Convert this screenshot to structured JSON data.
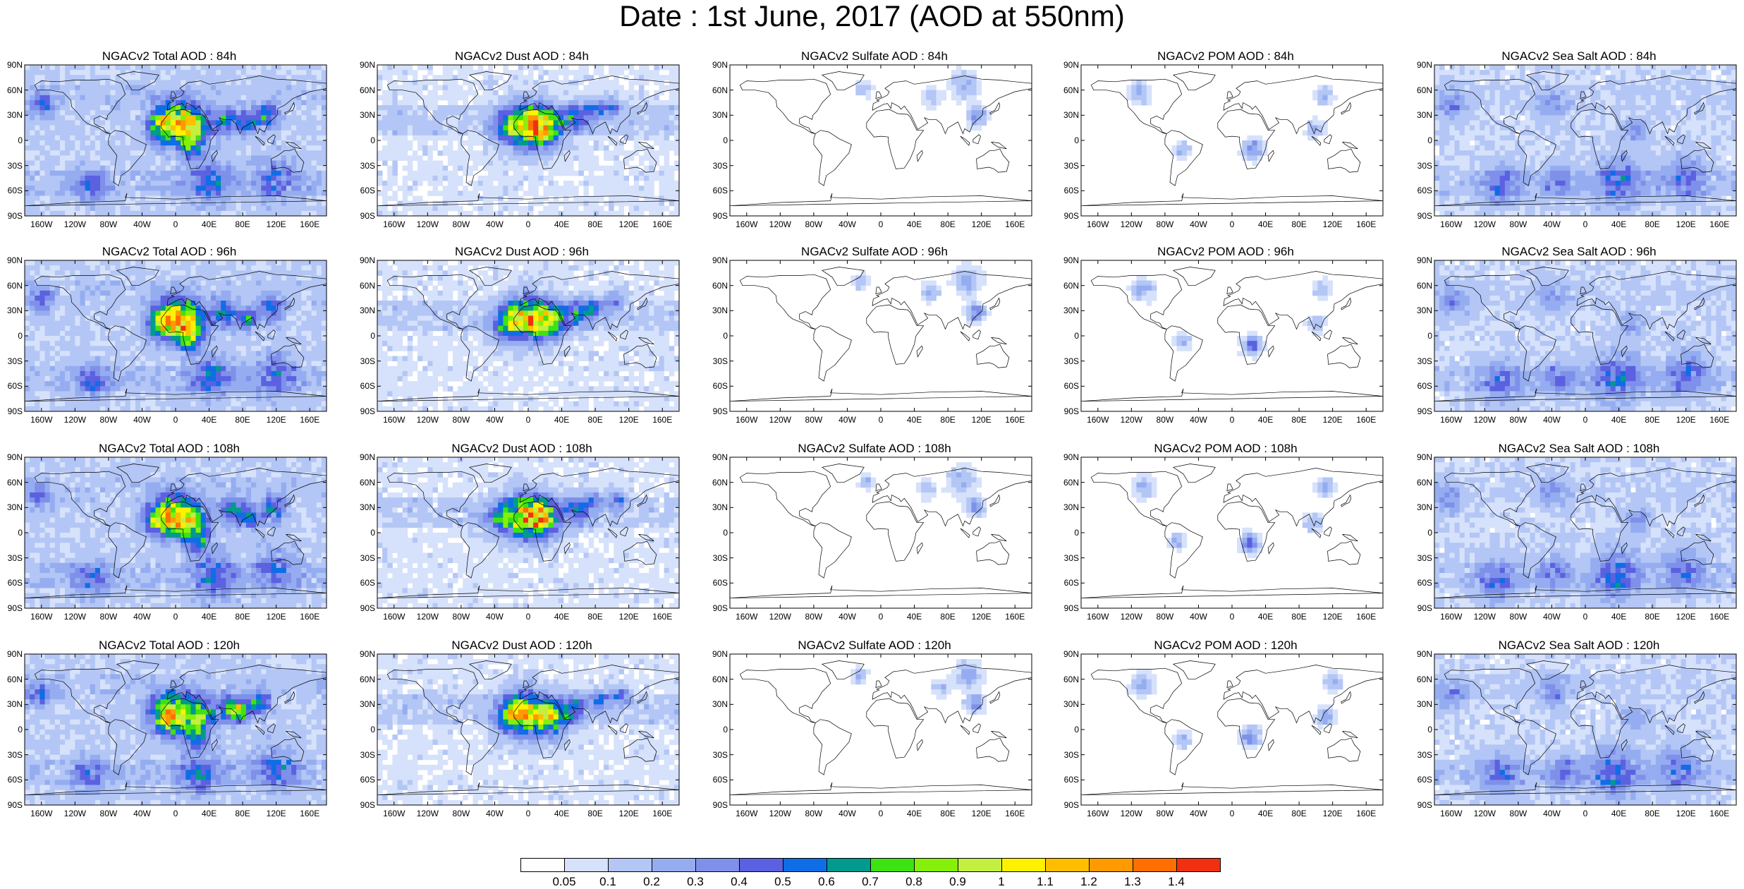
{
  "title": "Date : 1st June, 2017 (AOD at 550nm)",
  "lat_labels": [
    "90N",
    "60N",
    "30N",
    "0",
    "30S",
    "60S",
    "90S"
  ],
  "lon_labels": [
    "160W",
    "120W",
    "80W",
    "40W",
    "0",
    "40E",
    "80E",
    "120E",
    "160E"
  ],
  "panel_titles": [
    [
      "NGACv2 Total AOD : 84h",
      "NGACv2 Dust AOD : 84h",
      "NGACv2 Sulfate AOD : 84h",
      "NGACv2 POM AOD : 84h",
      "NGACv2 Sea Salt AOD : 84h"
    ],
    [
      "NGACv2 Total AOD : 96h",
      "NGACv2 Dust AOD : 96h",
      "NGACv2 Sulfate AOD : 96h",
      "NGACv2 POM AOD : 96h",
      "NGACv2 Sea Salt AOD : 96h"
    ],
    [
      "NGACv2 Total AOD : 108h",
      "NGACv2 Dust AOD : 108h",
      "NGACv2 Sulfate AOD : 108h",
      "NGACv2 POM AOD : 108h",
      "NGACv2 Sea Salt AOD : 108h"
    ],
    [
      "NGACv2 Total AOD : 120h",
      "NGACv2 Dust AOD : 120h",
      "NGACv2 Sulfate AOD : 120h",
      "NGACv2 POM AOD : 120h",
      "NGACv2 Sea Salt  AOD : 120h"
    ]
  ],
  "colorbar": {
    "levels": [
      "0.05",
      "0.1",
      "0.2",
      "0.3",
      "0.4",
      "0.5",
      "0.6",
      "0.7",
      "0.8",
      "0.9",
      "1",
      "1.1",
      "1.2",
      "1.3",
      "1.4"
    ],
    "colors": [
      "#ffffff",
      "#d6e1fb",
      "#b3c6f5",
      "#95adf0",
      "#7f90ea",
      "#5b61e0",
      "#0f6de6",
      "#009a8e",
      "#3ee213",
      "#86f00a",
      "#c3f040",
      "#fff200",
      "#ffbf00",
      "#ff9a00",
      "#ff6f00",
      "#f03010"
    ]
  }
}
